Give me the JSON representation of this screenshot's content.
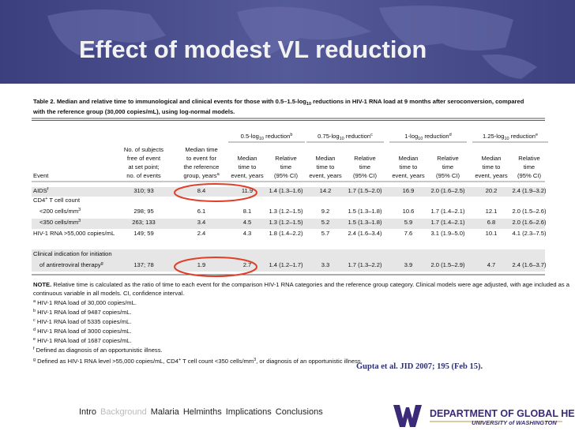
{
  "slide": {
    "title": "Effect of modest VL reduction",
    "table": {
      "caption": [
        [
          "Table 2.",
          "   Median and relative time to immunological and clinical events for those with 0.5–1.5-log",
          {
            "sub": "10"
          },
          " reductions in HIV-1 RNA load at 9 months after seroconversion, compared"
        ],
        [
          "with the reference group (30,000 copies/mL), using log-normal models."
        ]
      ],
      "groups": [
        [
          "0.5-log",
          {
            "sub": "10"
          },
          " reduction",
          {
            "sup": "b"
          }
        ],
        [
          "0.75-log",
          {
            "sub": "10"
          },
          " reduction",
          {
            "sup": "c"
          }
        ],
        [
          "1-log",
          {
            "sub": "10"
          },
          " reduction",
          {
            "sup": "d"
          }
        ],
        [
          "1.25-log",
          {
            "sub": "10"
          },
          " reduction",
          {
            "sup": "e"
          }
        ]
      ],
      "columns": [
        [
          [
            "Event"
          ]
        ],
        [
          [
            "No. of subjects"
          ],
          [
            "free of event"
          ],
          [
            "at set point;"
          ],
          [
            "no. of events"
          ]
        ],
        [
          [
            "Median time"
          ],
          [
            "to event for"
          ],
          [
            "the reference"
          ],
          [
            "group, years",
            {
              "sup": "a"
            }
          ]
        ],
        [
          [
            "Median"
          ],
          [
            "time to"
          ],
          [
            "event, years"
          ]
        ],
        [
          [
            "Relative"
          ],
          [
            "time"
          ],
          [
            "(95% CI)"
          ]
        ],
        [
          [
            "Median"
          ],
          [
            "time to"
          ],
          [
            "event, years"
          ]
        ],
        [
          [
            "Relative"
          ],
          [
            "time"
          ],
          [
            "(95% CI)"
          ]
        ],
        [
          [
            "Median"
          ],
          [
            "time to"
          ],
          [
            "event, years"
          ]
        ],
        [
          [
            "Relative"
          ],
          [
            "time"
          ],
          [
            "(95% CI)"
          ]
        ],
        [
          [
            "Median"
          ],
          [
            "time to"
          ],
          [
            "event, years"
          ]
        ],
        [
          [
            "Relative"
          ],
          [
            "time"
          ],
          [
            "(95% CI)"
          ]
        ]
      ],
      "rows": [
        {
          "event": [
            [
              "AIDS",
              {
                "sup": "f"
              }
            ]
          ],
          "cells": [
            "310; 93",
            8.4,
            11.9,
            "1.4 (1.3–1.6)",
            14.2,
            "1.7 (1.5–2.0)",
            16.9,
            "2.0 (1.6–2.5)",
            20.2,
            "2.4 (1.9–3.2)"
          ]
        },
        {
          "event": [
            [
              "CD4",
              {
                "sup": "+"
              },
              " T cell count"
            ]
          ],
          "cells": []
        },
        {
          "event": [
            [
              "<200 cells/mm",
              {
                "sup": "3"
              }
            ]
          ],
          "cells": [
            "298; 95",
            6.1,
            8.1,
            "1.3 (1.2–1.5)",
            9.2,
            "1.5 (1.3–1.8)",
            10.6,
            "1.7 (1.4–2.1)",
            12.1,
            "2.0 (1.5–2.6)"
          ]
        },
        {
          "event": [
            [
              "<350 cells/mm",
              {
                "sup": "3"
              }
            ]
          ],
          "cells": [
            "263; 133",
            3.4,
            4.5,
            "1.3 (1.2–1.5)",
            5.2,
            "1.5 (1.3–1.8)",
            5.9,
            "1.7 (1.4–2.1)",
            6.8,
            "2.0 (1.6–2.6)"
          ]
        },
        {
          "event": [
            [
              "HIV-1 RNA >55,000 copies/mL"
            ]
          ],
          "cells": [
            "149; 59",
            2.4,
            4.3,
            "1.8 (1.4–2.2)",
            5.7,
            "2.4 (1.6–3.4)",
            7.6,
            "3.1 (1.9–5.0)",
            10.1,
            "4.1 (2.3–7.5)"
          ]
        },
        {
          "event": [
            [
              "Clinical indication for initiation"
            ],
            [
              "of antiretroviral therapy",
              {
                "sup": "g"
              }
            ]
          ],
          "cells": [
            "137; 78",
            1.9,
            2.7,
            "1.4 (1.2–1.7)",
            3.3,
            "1.7 (1.3–2.2)",
            3.9,
            "2.0 (1.5–2.9)",
            4.7,
            "2.4 (1.6–3.7)"
          ]
        }
      ],
      "notes": [
        [
          "NOTE.",
          "  Relative time is calculated as the ratio of time to each event for the comparison HIV-1 RNA categories and the reference group category. Clinical models were age adjusted, with age included as a"
        ],
        [
          "continuous variable in all models. CI, confidence interval."
        ],
        [
          {
            "sup": "a"
          },
          " HIV-1 RNA load of 30,000 copies/mL."
        ],
        [
          {
            "sup": "b"
          },
          " HIV-1 RNA load of 9487 copies/mL."
        ],
        [
          {
            "sup": "c"
          },
          " HIV-1 RNA load of 5335 copies/mL."
        ],
        [
          {
            "sup": "d"
          },
          " HIV-1 RNA load of 3000 copies/mL."
        ],
        [
          {
            "sup": "e"
          },
          " HIV-1 RNA load of 1687 copies/mL."
        ],
        [
          {
            "sup": "f"
          },
          " Defined as diagnosis of an opportunistic illness."
        ],
        [
          {
            "sup": "g"
          },
          " Defined as HIV-1 RNA level >55,000 copies/mL, CD4",
          {
            "sup": "+"
          },
          " T cell count <350 cells/mm",
          {
            "sup": "3"
          },
          ", or diagnosis of an opportunistic illness."
        ]
      ]
    },
    "citation": "Gupta et al. JID 2007; 195 (Feb 15).",
    "nav": {
      "items": [
        "Intro",
        "Background",
        "Malaria",
        "Helminths",
        "Implications",
        "Conclusions"
      ],
      "dimmed_index": 1
    },
    "logo": {
      "department": "DEPARTMENT OF GLOBAL HEALTH",
      "university": "UNIVERSITY of WASHINGTON"
    }
  }
}
